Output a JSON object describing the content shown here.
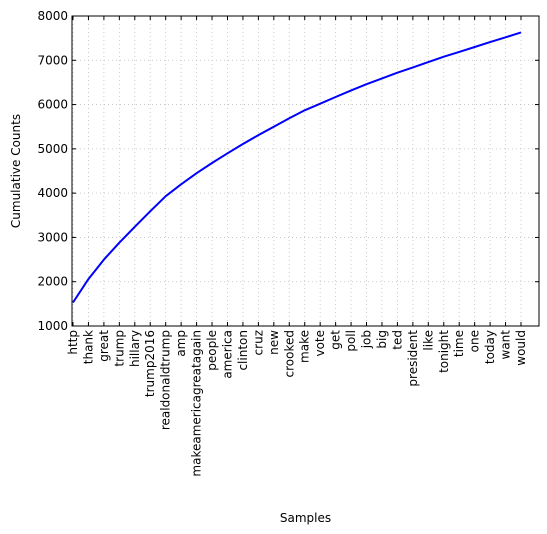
{
  "chart_data": {
    "type": "line",
    "xlabel": "Samples",
    "ylabel": "Cumulative Counts",
    "ylim": [
      1000,
      8000
    ],
    "yticks": [
      1000,
      2000,
      3000,
      4000,
      5000,
      6000,
      7000,
      8000
    ],
    "grid": true,
    "line_color": "#0000ff",
    "categories": [
      "http",
      "thank",
      "great",
      "trump",
      "hillary",
      "trump2016",
      "realdonaldtrump",
      "amp",
      "makeamericagreatagain",
      "people",
      "america",
      "clinton",
      "cruz",
      "new",
      "crooked",
      "make",
      "vote",
      "get",
      "poll",
      "job",
      "big",
      "ted",
      "president",
      "like",
      "tonight",
      "time",
      "one",
      "today",
      "want",
      "would"
    ],
    "values": [
      1530,
      2060,
      2500,
      2880,
      3240,
      3590,
      3930,
      4200,
      4450,
      4680,
      4900,
      5110,
      5310,
      5500,
      5690,
      5870,
      6020,
      6170,
      6320,
      6460,
      6590,
      6720,
      6840,
      6960,
      7080,
      7190,
      7300,
      7410,
      7520,
      7630
    ]
  }
}
